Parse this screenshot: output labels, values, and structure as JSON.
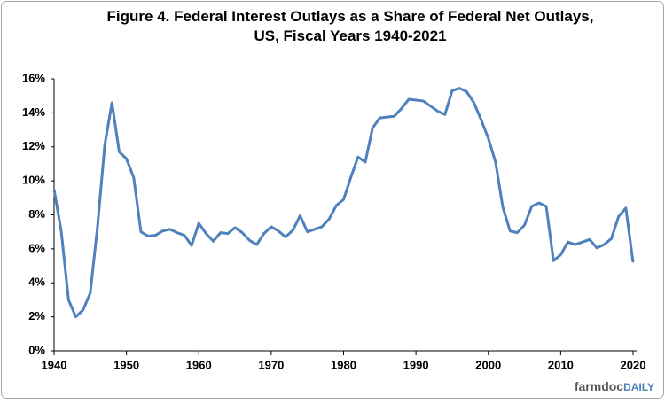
{
  "chart_data": {
    "type": "line",
    "title": [
      "Figure 4. Federal Interest Outlays as a Share of Federal Net Outlays,",
      "US, Fiscal Years 1940-2021"
    ],
    "brand": [
      "farmdoc",
      "DAILY"
    ],
    "x": [
      1940,
      1941,
      1942,
      1943,
      1944,
      1945,
      1946,
      1947,
      1948,
      1949,
      1950,
      1951,
      1952,
      1953,
      1954,
      1955,
      1956,
      1957,
      1958,
      1959,
      1960,
      1961,
      1962,
      1963,
      1964,
      1965,
      1966,
      1967,
      1968,
      1969,
      1970,
      1971,
      1972,
      1973,
      1974,
      1975,
      1976,
      1977,
      1978,
      1979,
      1980,
      1981,
      1982,
      1983,
      1984,
      1985,
      1986,
      1987,
      1988,
      1989,
      1990,
      1991,
      1992,
      1993,
      1994,
      1995,
      1996,
      1997,
      1998,
      1999,
      2000,
      2001,
      2002,
      2003,
      2004,
      2005,
      2006,
      2007,
      2008,
      2009,
      2010,
      2011,
      2012,
      2013,
      2014,
      2015,
      2016,
      2017,
      2018,
      2019,
      2020
    ],
    "series": [
      {
        "color": "#4f81bd",
        "values": [
          9.5,
          7.0,
          3.0,
          2.0,
          2.4,
          3.4,
          7.3,
          12.1,
          14.6,
          11.7,
          11.3,
          10.2,
          7.0,
          6.75,
          6.8,
          7.05,
          7.15,
          6.95,
          6.8,
          6.2,
          7.5,
          6.9,
          6.45,
          6.95,
          6.9,
          7.25,
          6.95,
          6.5,
          6.25,
          6.9,
          7.3,
          7.05,
          6.7,
          7.1,
          7.95,
          7.0,
          7.15,
          7.3,
          7.75,
          8.55,
          8.9,
          10.2,
          11.4,
          11.1,
          13.1,
          13.7,
          13.75,
          13.8,
          14.25,
          14.8,
          14.75,
          14.7,
          14.4,
          14.1,
          13.9,
          15.3,
          15.45,
          15.25,
          14.6,
          13.6,
          12.5,
          11.1,
          8.45,
          7.05,
          6.95,
          7.4,
          8.5,
          8.7,
          8.5,
          5.3,
          5.65,
          6.4,
          6.25,
          6.4,
          6.55,
          6.05,
          6.25,
          6.6,
          7.9,
          8.4,
          5.2
        ]
      }
    ],
    "xlim": [
      1940,
      2020
    ],
    "xticks": [
      1940,
      1950,
      1960,
      1970,
      1980,
      1990,
      2000,
      2010,
      2020
    ],
    "ylim": [
      0,
      16
    ],
    "yticks": [
      {
        "value": 0,
        "label": "0%"
      },
      {
        "value": 2,
        "label": "2%"
      },
      {
        "value": 4,
        "label": "4%"
      },
      {
        "value": 6,
        "label": "6%"
      },
      {
        "value": 8,
        "label": "8%"
      },
      {
        "value": 10,
        "label": "10%"
      },
      {
        "value": 12,
        "label": "12%"
      },
      {
        "value": 14,
        "label": "14%"
      },
      {
        "value": 16,
        "label": "16%"
      }
    ],
    "grid": false
  }
}
